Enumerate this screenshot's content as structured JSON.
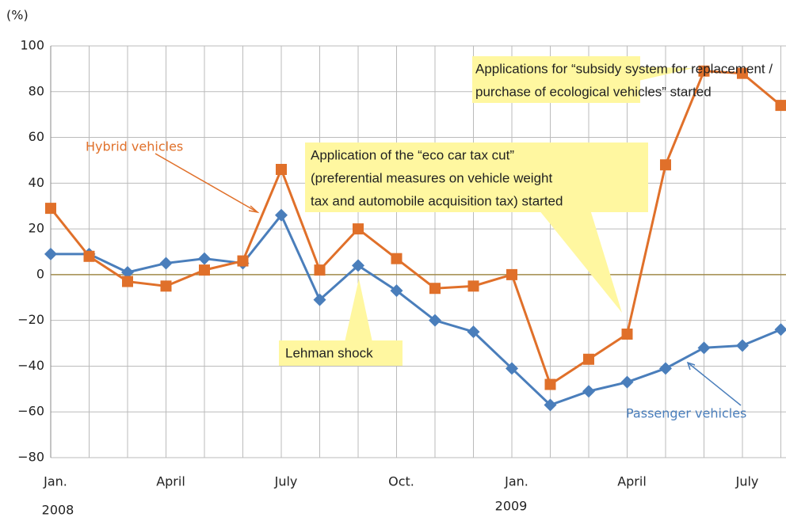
{
  "chart_data": {
    "type": "line",
    "y_label": "(%)",
    "categories": [
      "Jan.",
      null,
      null,
      "April",
      null,
      null,
      "July",
      null,
      null,
      "Oct.",
      null,
      null,
      "Jan.",
      null,
      null,
      "April",
      null,
      null,
      "July",
      null
    ],
    "year_labels": [
      "2008",
      "2009"
    ],
    "ylim": [
      -80,
      100
    ],
    "yticks": [
      {
        "value": -80,
        "label": "−80"
      },
      {
        "value": -60,
        "label": "−60"
      },
      {
        "value": -40,
        "label": "−40"
      },
      {
        "value": -20,
        "label": "−20"
      },
      0,
      20,
      40,
      60,
      80,
      100
    ],
    "grid": true,
    "series": [
      {
        "name": "Passenger vehicles",
        "color": "#4a7ebb",
        "marker": "diamond",
        "values": [
          9,
          9,
          1,
          5,
          7,
          5,
          26,
          -11,
          4,
          -7,
          -20,
          -25,
          -41,
          -57,
          -51,
          -47,
          -41,
          -32,
          -31,
          -24
        ]
      },
      {
        "name": "Hybrid vehicles",
        "color": "#e0702a",
        "marker": "square",
        "values": [
          29,
          8,
          -3,
          -5,
          2,
          6,
          46,
          2,
          20,
          7,
          -6,
          -5,
          0,
          -48,
          -37,
          -26,
          48,
          89,
          88,
          74
        ]
      }
    ],
    "annotations": [
      [
        "Applications for  “subsidy system for replacement /",
        " purchase of ecological vehicles” started"
      ],
      [
        "Application of the “eco car tax cut”",
        "(preferential measures on vehicle weight",
        "tax and automobile acquisition tax) started"
      ],
      [
        "Lehman shock"
      ]
    ]
  }
}
